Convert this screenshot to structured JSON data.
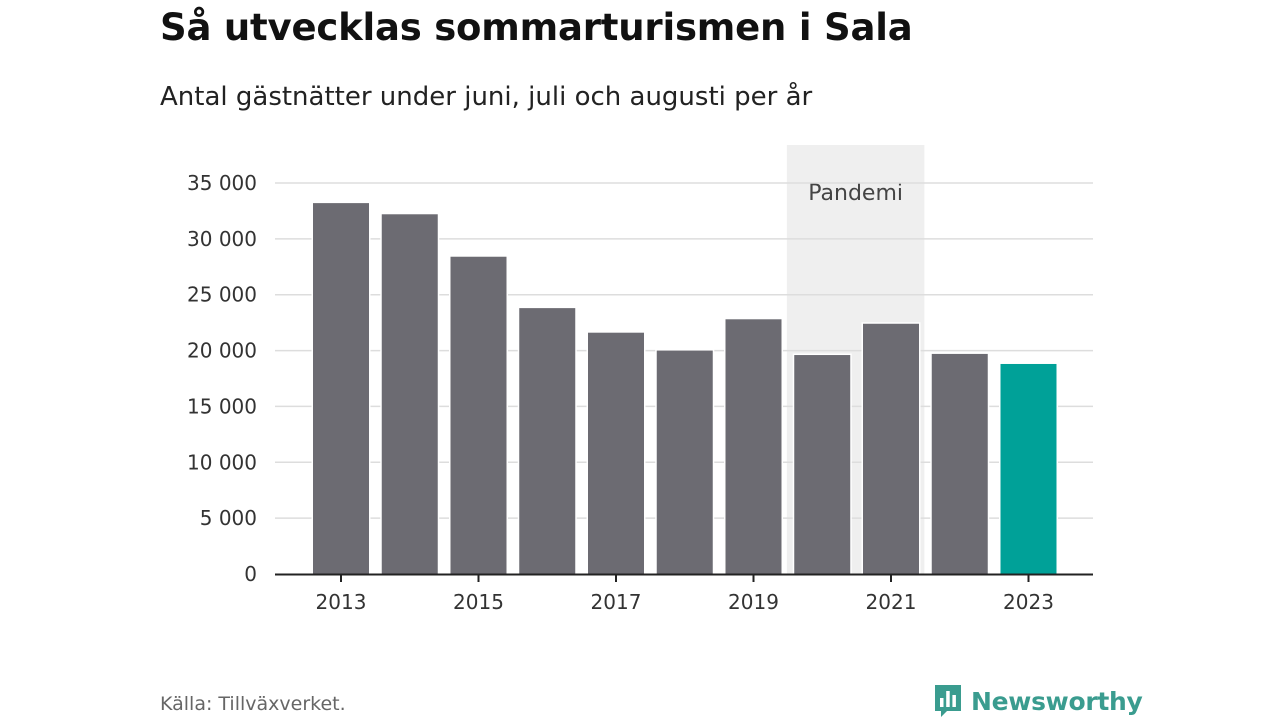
{
  "header": {
    "title": "Så utvecklas sommarturismen i Sala",
    "subtitle": "Antal gästnätter under juni, juli och augusti per år"
  },
  "footer": {
    "source": "Källa: Tillväxverket.",
    "brand": "Newsworthy"
  },
  "colors": {
    "bar": "#6c6b72",
    "highlight": "#00a198",
    "annotation_band": "#efefef",
    "grid": "#dddddd",
    "brand": "#3a9c8f"
  },
  "chart_data": {
    "type": "bar",
    "title": "Så utvecklas sommarturismen i Sala",
    "subtitle": "Antal gästnätter under juni, juli och augusti per år",
    "xlabel": "",
    "ylabel": "",
    "categories": [
      "2013",
      "2014",
      "2015",
      "2016",
      "2017",
      "2018",
      "2019",
      "2020",
      "2021",
      "2022",
      "2023"
    ],
    "values": [
      33200,
      32200,
      28400,
      23800,
      21600,
      20000,
      22800,
      19600,
      22400,
      19700,
      18800
    ],
    "highlight_category": "2023",
    "x_tick_labels": [
      "2013",
      "2015",
      "2017",
      "2019",
      "2021",
      "2023"
    ],
    "ylim": [
      0,
      35000
    ],
    "y_ticks": [
      0,
      5000,
      10000,
      15000,
      20000,
      25000,
      30000,
      35000
    ],
    "y_tick_labels": [
      "0",
      "5 000",
      "10 000",
      "15 000",
      "20 000",
      "25 000",
      "30 000",
      "35 000"
    ],
    "grid": true,
    "legend": "none",
    "annotations": [
      {
        "label": "Pandemi",
        "from": "2020",
        "to": "2021"
      }
    ]
  }
}
